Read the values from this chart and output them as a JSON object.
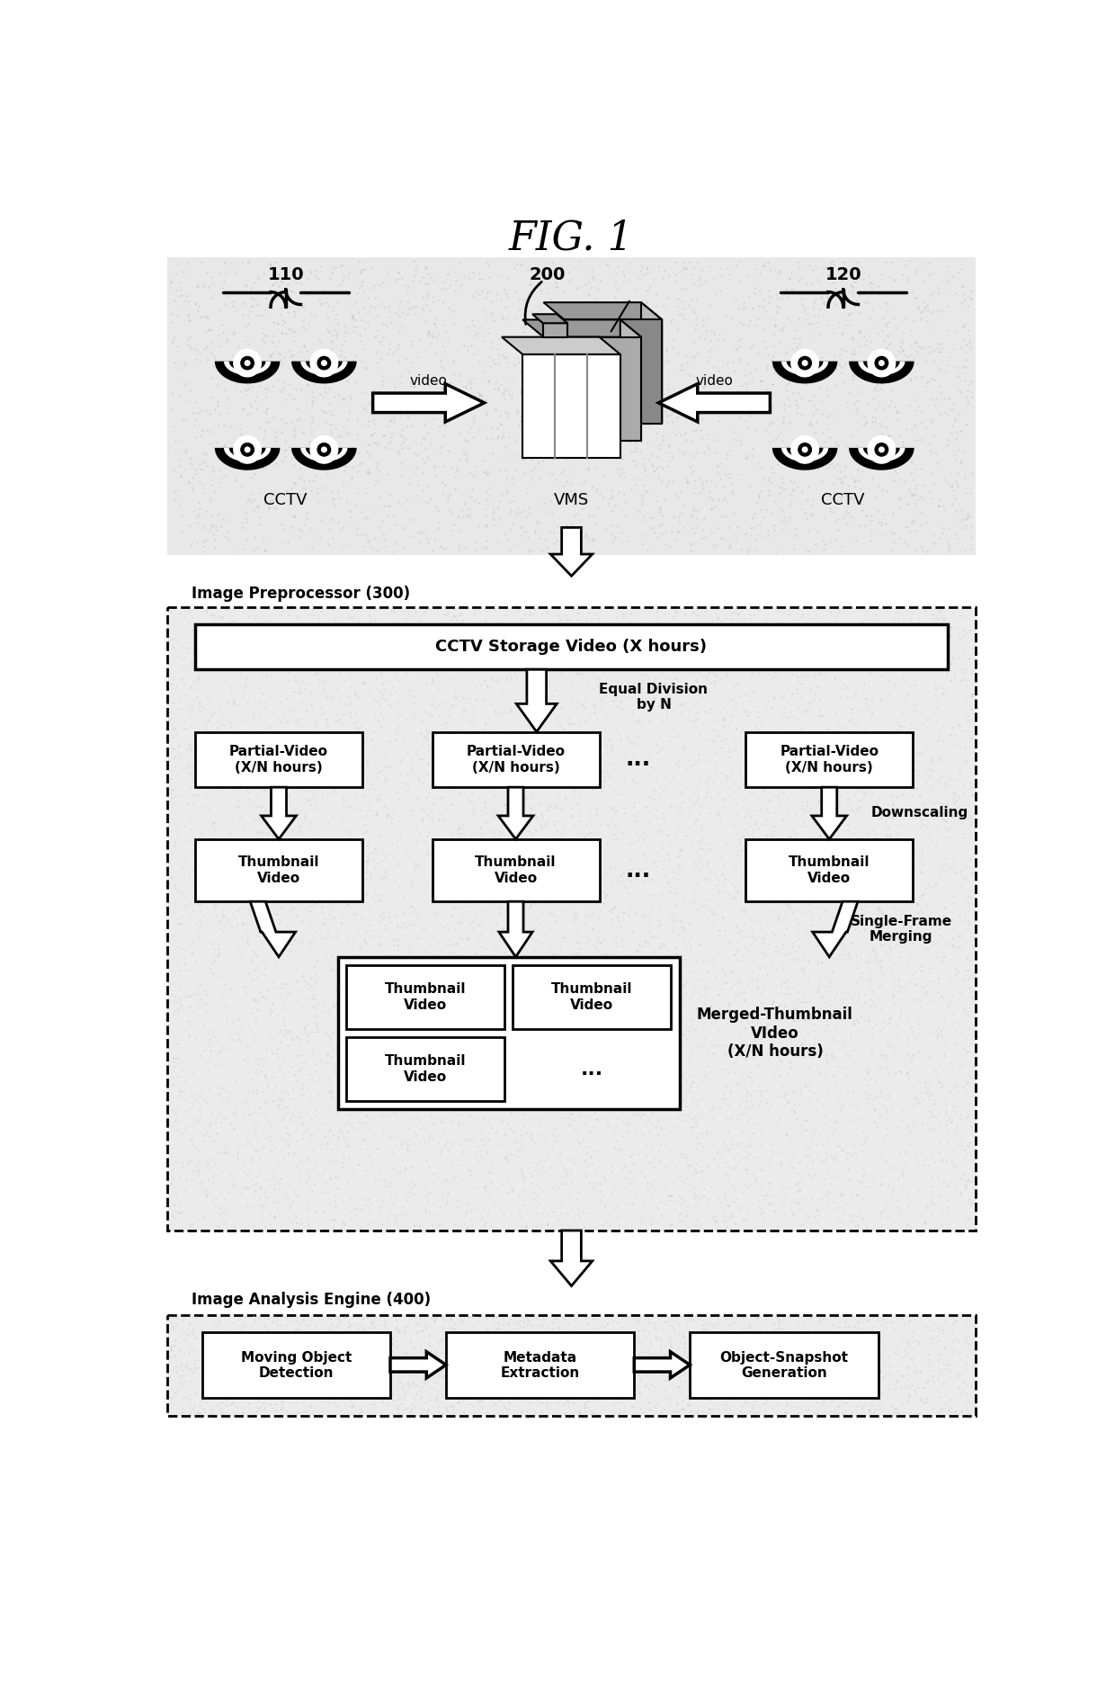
{
  "title": "FIG. 1",
  "white": "#ffffff",
  "black": "#000000",
  "fig_width": 12.4,
  "fig_height": 18.71,
  "cctv_left_label": "110",
  "cctv_right_label": "120",
  "vms_label": "200",
  "cctv_text": "CCTV",
  "vms_text": "VMS",
  "video_left": "video",
  "video_right": "video",
  "preprocessor_label": "Image Preprocessor (300)",
  "storage_box_text": "CCTV Storage Video (X hours)",
  "equal_division_text": "Equal Division\nby N",
  "partial_video_text": "Partial-Video\n(X/N hours)",
  "downscaling_text": "Downscaling",
  "thumbnail_video_text": "Thumbnail\nVideo",
  "single_frame_text": "Single-Frame\nMerging",
  "merged_thumbnail_text": "Merged-Thumbnail\nVIdeo\n(X/N hours)",
  "analysis_label": "Image Analysis Engine (400)",
  "moving_object_text": "Moving Object\nDetection",
  "metadata_text": "Metadata\nExtraction",
  "object_snapshot_text": "Object-Snapshot\nGeneration",
  "dotted_bg": "#e8e8e8",
  "inner_dotted_bg": "#e0e0e0"
}
